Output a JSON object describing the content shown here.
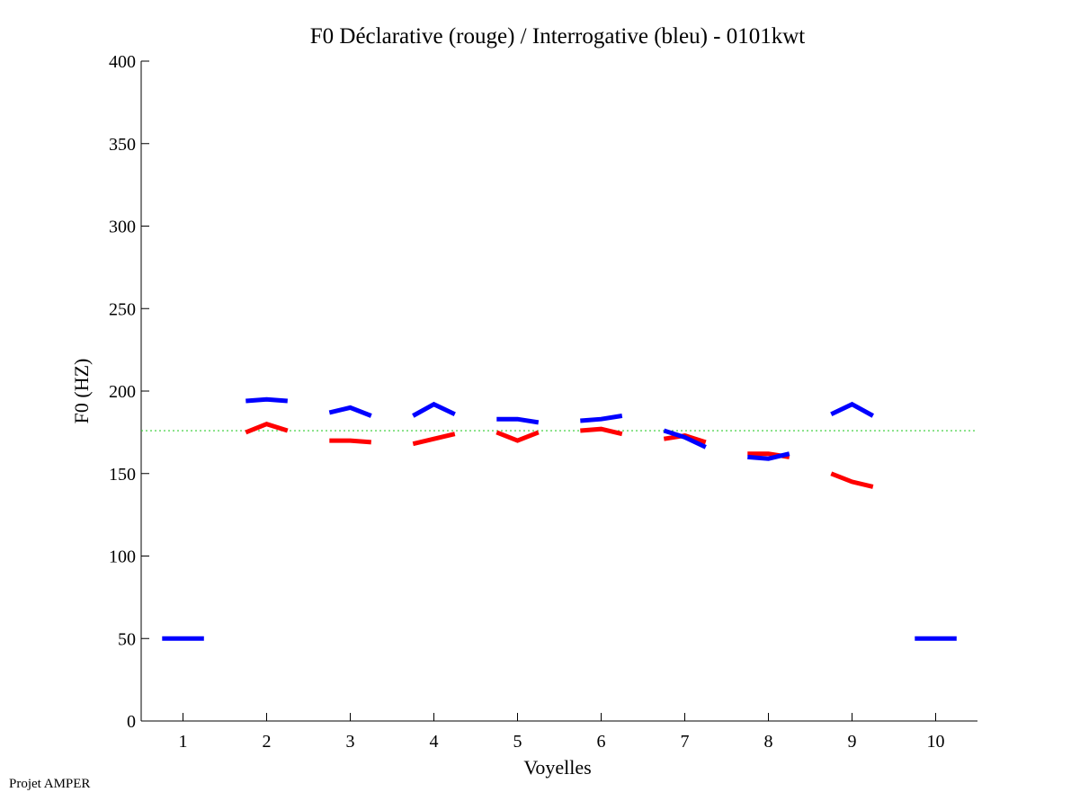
{
  "chart_data": {
    "type": "line",
    "title": "F0 Déclarative (rouge) / Interrogative (bleu) - 0101kwt",
    "xlabel": "Voyelles",
    "ylabel": "F0 (HZ)",
    "xlim": [
      0.5,
      10.5
    ],
    "ylim": [
      0,
      400
    ],
    "xticks": [
      1,
      2,
      3,
      4,
      5,
      6,
      7,
      8,
      9,
      10
    ],
    "yticks": [
      0,
      50,
      100,
      150,
      200,
      250,
      300,
      350,
      400
    ],
    "grid": false,
    "reference_line": {
      "y": 176,
      "color": "#33cc33",
      "style": "dotted"
    },
    "series": [
      {
        "color": "#ff0000",
        "segments": [
          {
            "vowel": 2,
            "points": [
              [
                1.75,
                175
              ],
              [
                2.0,
                180
              ],
              [
                2.25,
                176
              ]
            ]
          },
          {
            "vowel": 3,
            "points": [
              [
                2.75,
                170
              ],
              [
                3.0,
                170
              ],
              [
                3.25,
                169
              ]
            ]
          },
          {
            "vowel": 4,
            "points": [
              [
                3.75,
                168
              ],
              [
                4.0,
                171
              ],
              [
                4.25,
                174
              ]
            ]
          },
          {
            "vowel": 5,
            "points": [
              [
                4.75,
                175
              ],
              [
                5.0,
                170
              ],
              [
                5.25,
                175
              ]
            ]
          },
          {
            "vowel": 6,
            "points": [
              [
                5.75,
                176
              ],
              [
                6.0,
                177
              ],
              [
                6.25,
                174
              ]
            ]
          },
          {
            "vowel": 7,
            "points": [
              [
                6.75,
                171
              ],
              [
                7.0,
                173
              ],
              [
                7.25,
                169
              ]
            ]
          },
          {
            "vowel": 8,
            "points": [
              [
                7.75,
                162
              ],
              [
                8.0,
                162
              ],
              [
                8.25,
                160
              ]
            ]
          },
          {
            "vowel": 9,
            "points": [
              [
                8.75,
                150
              ],
              [
                9.0,
                145
              ],
              [
                9.25,
                142
              ]
            ]
          }
        ]
      },
      {
        "color": "#0000ff",
        "segments": [
          {
            "vowel": 1,
            "points": [
              [
                0.75,
                50
              ],
              [
                1.0,
                50
              ],
              [
                1.25,
                50
              ]
            ]
          },
          {
            "vowel": 2,
            "points": [
              [
                1.75,
                194
              ],
              [
                2.0,
                195
              ],
              [
                2.25,
                194
              ]
            ]
          },
          {
            "vowel": 3,
            "points": [
              [
                2.75,
                187
              ],
              [
                3.0,
                190
              ],
              [
                3.25,
                185
              ]
            ]
          },
          {
            "vowel": 4,
            "points": [
              [
                3.75,
                185
              ],
              [
                4.0,
                192
              ],
              [
                4.25,
                186
              ]
            ]
          },
          {
            "vowel": 5,
            "points": [
              [
                4.75,
                183
              ],
              [
                5.0,
                183
              ],
              [
                5.25,
                181
              ]
            ]
          },
          {
            "vowel": 6,
            "points": [
              [
                5.75,
                182
              ],
              [
                6.0,
                183
              ],
              [
                6.25,
                185
              ]
            ]
          },
          {
            "vowel": 7,
            "points": [
              [
                6.75,
                176
              ],
              [
                7.0,
                172
              ],
              [
                7.25,
                166
              ]
            ]
          },
          {
            "vowel": 8,
            "points": [
              [
                7.75,
                160
              ],
              [
                8.0,
                159
              ],
              [
                8.25,
                162
              ]
            ]
          },
          {
            "vowel": 9,
            "points": [
              [
                8.75,
                186
              ],
              [
                9.0,
                192
              ],
              [
                9.25,
                185
              ]
            ]
          },
          {
            "vowel": 10,
            "points": [
              [
                9.75,
                50
              ],
              [
                10.0,
                50
              ],
              [
                10.25,
                50
              ]
            ]
          }
        ]
      }
    ]
  },
  "footer": {
    "credit": "Projet AMPER"
  }
}
